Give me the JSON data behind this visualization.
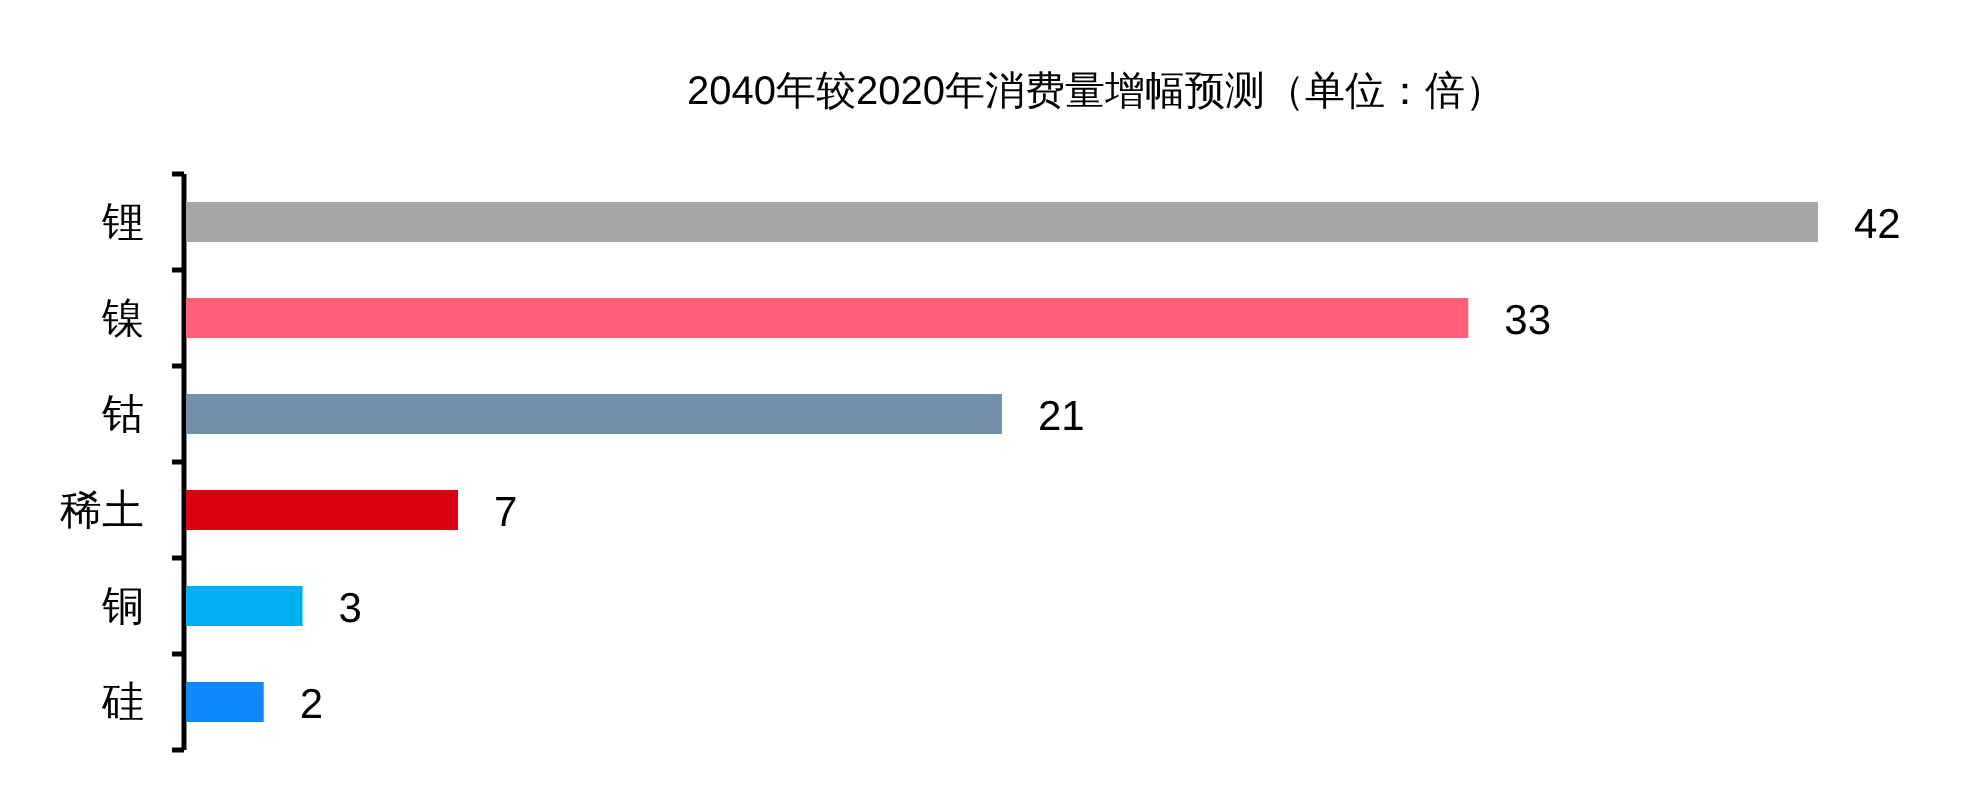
{
  "chart_data": {
    "type": "bar",
    "orientation": "horizontal",
    "title": "2040年较2020年消费量增幅预测（单位：倍）",
    "categories": [
      "锂",
      "镍",
      "钴",
      "稀土",
      "铜",
      "硅"
    ],
    "values": [
      42,
      33,
      21,
      7,
      3,
      2
    ],
    "colors": [
      "#a6a6a6",
      "#ff5f79",
      "#7490ab",
      "#d9000f",
      "#00b0f0",
      "#0f88fb"
    ],
    "data_labels": true
  }
}
